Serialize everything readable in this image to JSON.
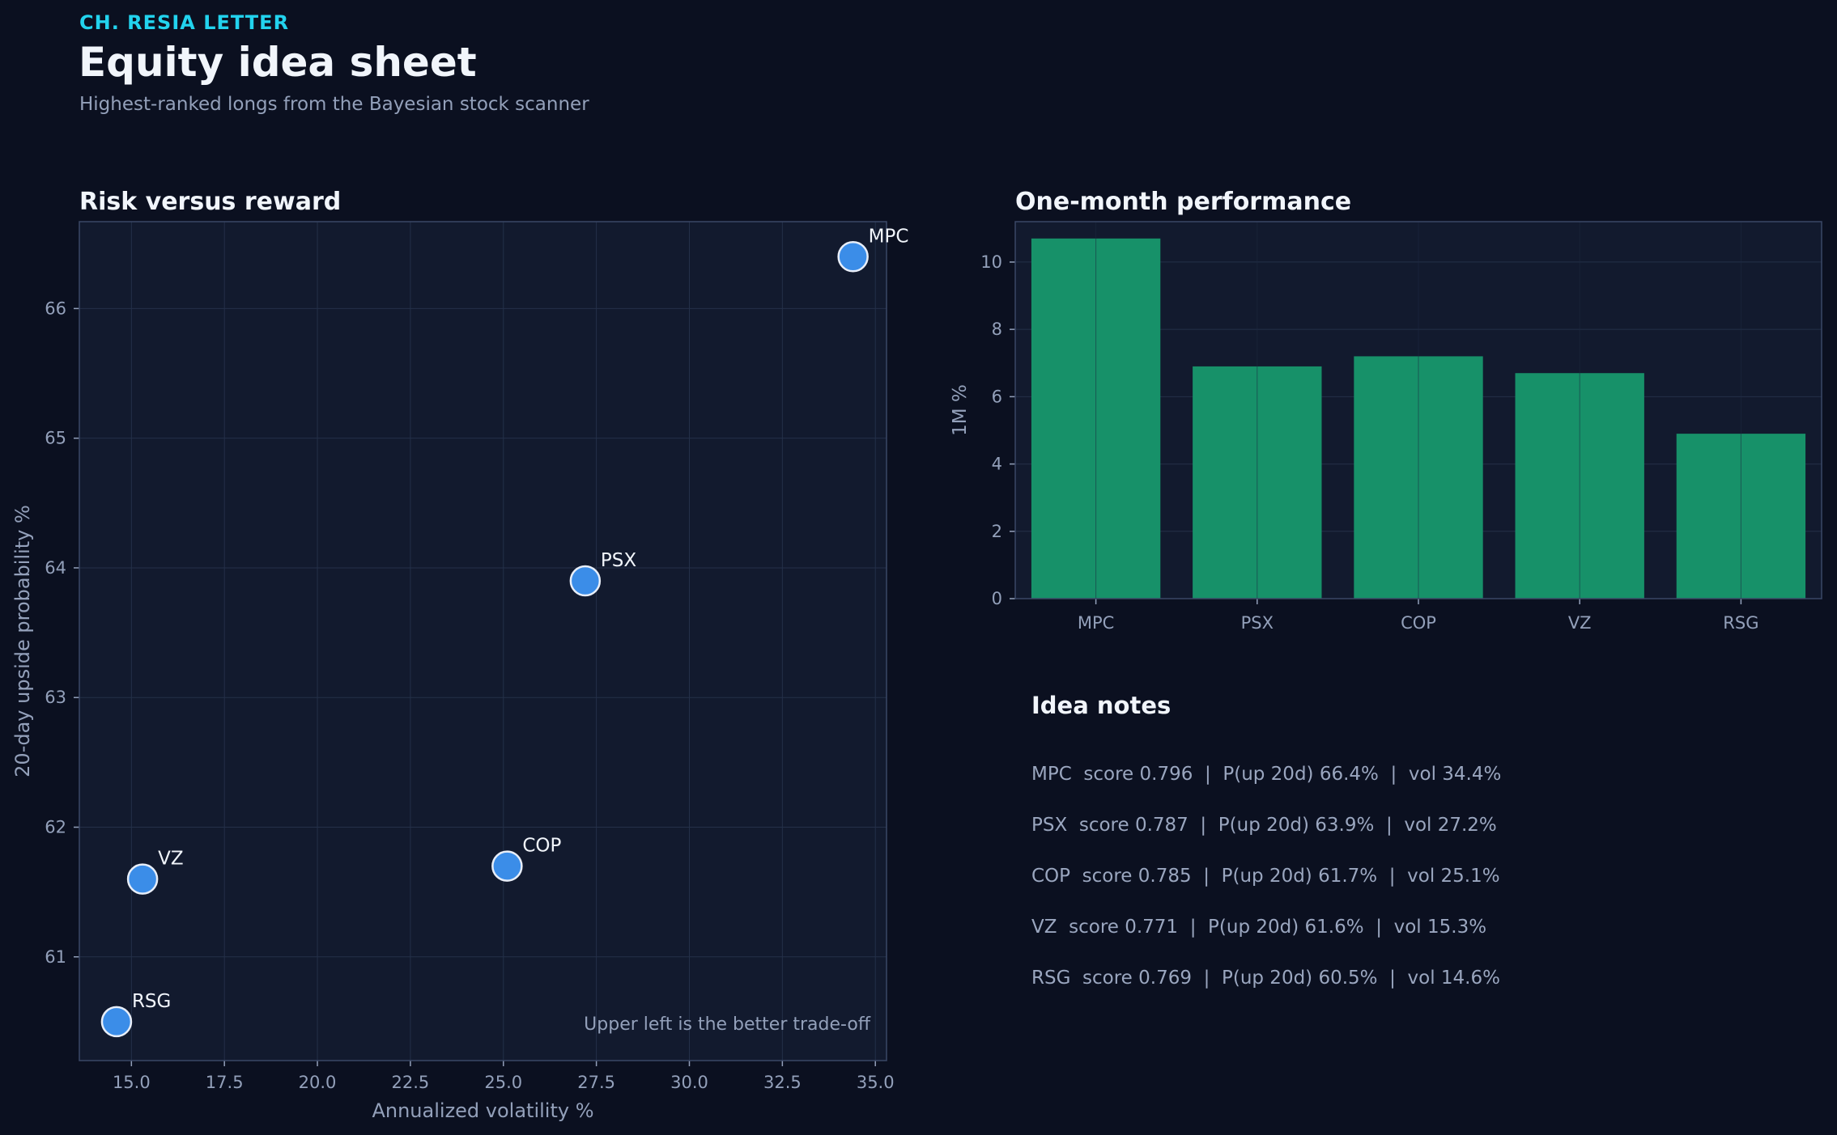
{
  "header": {
    "eyebrow": "CH. RESIA LETTER",
    "title": "Equity idea sheet",
    "subtitle": "Highest-ranked longs from the Bayesian stock scanner"
  },
  "colors": {
    "background": "#0b1020",
    "panel": "#121a2e",
    "accent": "#22d3ee",
    "point": "#3b8de8",
    "bar": "#179169"
  },
  "chart_data": [
    {
      "type": "scatter",
      "title": "Risk versus reward",
      "xlabel": "Annualized volatility %",
      "ylabel": "20-day upside probability %",
      "xlim": [
        13.6,
        35.3
      ],
      "ylim": [
        60.2,
        66.67
      ],
      "xticks": [
        "15.0",
        "17.5",
        "20.0",
        "22.5",
        "25.0",
        "27.5",
        "30.0",
        "32.5",
        "35.0"
      ],
      "yticks": [
        "61",
        "62",
        "63",
        "64",
        "65",
        "66"
      ],
      "grid": true,
      "annotation": "Upper left is the better trade-off",
      "points": [
        {
          "label": "MPC",
          "x": 34.4,
          "y": 66.4
        },
        {
          "label": "PSX",
          "x": 27.2,
          "y": 63.9
        },
        {
          "label": "COP",
          "x": 25.1,
          "y": 61.7
        },
        {
          "label": "VZ",
          "x": 15.3,
          "y": 61.6
        },
        {
          "label": "RSG",
          "x": 14.6,
          "y": 60.5
        }
      ]
    },
    {
      "type": "bar",
      "title": "One-month performance",
      "xlabel": "",
      "ylabel": "1M %",
      "ylim": [
        0,
        11.2
      ],
      "yticks": [
        "0",
        "2",
        "4",
        "6",
        "8",
        "10"
      ],
      "grid": true,
      "categories": [
        "MPC",
        "PSX",
        "COP",
        "VZ",
        "RSG"
      ],
      "values": [
        10.7,
        6.9,
        7.2,
        6.7,
        4.9
      ]
    }
  ],
  "notes": {
    "title": "Idea notes",
    "lines": [
      "MPC  score 0.796  |  P(up 20d) 66.4%  |  vol 34.4%",
      "PSX  score 0.787  |  P(up 20d) 63.9%  |  vol 27.2%",
      "COP  score 0.785  |  P(up 20d) 61.7%  |  vol 25.1%",
      "VZ  score 0.771  |  P(up 20d) 61.6%  |  vol 15.3%",
      "RSG  score 0.769  |  P(up 20d) 60.5%  |  vol 14.6%"
    ]
  }
}
